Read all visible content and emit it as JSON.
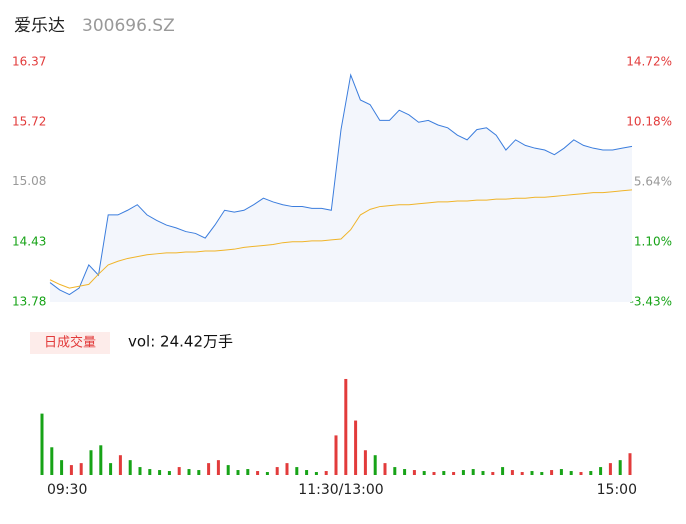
{
  "header": {
    "name": "爱乐达",
    "code": "300696.SZ"
  },
  "chart_data": [
    {
      "type": "line",
      "x": [
        0,
        4,
        8,
        12,
        16,
        20,
        24,
        28,
        32,
        36,
        40,
        44,
        48,
        52,
        56,
        60,
        64,
        68,
        72,
        76,
        80,
        84,
        88,
        92,
        96,
        100,
        104,
        108,
        112,
        116,
        120,
        124,
        128,
        132,
        136,
        140,
        144,
        148,
        152,
        156,
        160,
        164,
        168,
        172,
        176,
        180,
        184,
        188,
        192,
        196,
        200,
        204,
        208,
        212,
        216,
        220,
        224,
        228,
        232,
        236,
        240
      ],
      "xlim": [
        0,
        240
      ],
      "series": [
        {
          "color": "#3b7ddd",
          "fill": "#f3f6fc",
          "values": [
            13.99,
            13.91,
            13.86,
            13.93,
            14.18,
            14.07,
            14.72,
            14.72,
            14.77,
            14.83,
            14.72,
            14.66,
            14.61,
            14.58,
            14.54,
            14.52,
            14.47,
            14.61,
            14.77,
            14.75,
            14.77,
            14.83,
            14.9,
            14.86,
            14.83,
            14.81,
            14.81,
            14.79,
            14.79,
            14.77,
            15.64,
            16.23,
            15.96,
            15.91,
            15.74,
            15.74,
            15.85,
            15.8,
            15.72,
            15.74,
            15.69,
            15.66,
            15.58,
            15.53,
            15.64,
            15.66,
            15.58,
            15.42,
            15.53,
            15.47,
            15.44,
            15.42,
            15.37,
            15.44,
            15.53,
            15.47,
            15.44,
            15.42,
            15.42,
            15.44,
            15.46
          ]
        },
        {
          "color": "#f0b429",
          "values": [
            14.02,
            13.97,
            13.93,
            13.95,
            13.97,
            14.08,
            14.18,
            14.22,
            14.25,
            14.27,
            14.29,
            14.3,
            14.31,
            14.31,
            14.32,
            14.32,
            14.33,
            14.33,
            14.34,
            14.35,
            14.37,
            14.38,
            14.39,
            14.4,
            14.42,
            14.43,
            14.43,
            14.44,
            14.44,
            14.45,
            14.46,
            14.56,
            14.72,
            14.78,
            14.81,
            14.82,
            14.83,
            14.83,
            14.84,
            14.85,
            14.86,
            14.86,
            14.87,
            14.87,
            14.88,
            14.88,
            14.89,
            14.89,
            14.9,
            14.9,
            14.91,
            14.91,
            14.92,
            14.93,
            14.94,
            14.95,
            14.96,
            14.96,
            14.97,
            14.98,
            14.99
          ]
        }
      ],
      "ylim": [
        13.78,
        16.37
      ],
      "yticks": [
        16.37,
        15.72,
        15.08,
        14.43,
        13.78
      ],
      "ytick_colors": [
        "#e23b3b",
        "#e23b3b",
        "#999999",
        "#17a317",
        "#17a317"
      ],
      "y2lim": [
        -3.43,
        14.72
      ],
      "y2ticks": [
        {
          "value": 14.72,
          "label": "14.72%"
        },
        {
          "value": 10.18,
          "label": "10.18%"
        },
        {
          "value": 5.64,
          "label": "5.64%"
        },
        {
          "value": 1.1,
          "label": "1.10%"
        },
        {
          "value": -3.43,
          "label": "-3.43%"
        }
      ]
    },
    {
      "type": "bar",
      "button": "日成交量",
      "label": "vol: 24.42万手",
      "x": [
        0,
        4,
        8,
        12,
        16,
        20,
        24,
        28,
        32,
        36,
        40,
        44,
        48,
        52,
        56,
        60,
        64,
        68,
        72,
        76,
        80,
        84,
        88,
        92,
        96,
        100,
        104,
        108,
        112,
        116,
        120,
        124,
        128,
        132,
        136,
        140,
        144,
        148,
        152,
        156,
        160,
        164,
        168,
        172,
        176,
        180,
        184,
        188,
        192,
        196,
        200,
        204,
        208,
        212,
        216,
        220,
        224,
        228,
        232,
        236,
        240
      ],
      "xlim": [
        0,
        240
      ],
      "xticks": [
        {
          "value": 0,
          "label": "09:30"
        },
        {
          "value": 120,
          "label": "11:30/13:00"
        },
        {
          "value": 240,
          "label": "15:00"
        }
      ],
      "values": [
        62,
        28,
        15,
        10,
        12,
        25,
        30,
        12,
        20,
        15,
        8,
        6,
        5,
        4,
        8,
        6,
        5,
        12,
        15,
        10,
        5,
        6,
        4,
        3,
        8,
        12,
        8,
        5,
        3,
        4,
        40,
        97,
        55,
        25,
        20,
        12,
        8,
        6,
        5,
        4,
        3,
        4,
        3,
        5,
        6,
        4,
        3,
        8,
        5,
        3,
        4,
        3,
        5,
        6,
        4,
        3,
        4,
        8,
        12,
        15,
        22
      ],
      "colors": [
        "#17a317",
        "#17a317",
        "#17a317",
        "#e23b3b",
        "#e23b3b",
        "#17a317",
        "#17a317",
        "#17a317",
        "#e23b3b",
        "#17a317",
        "#17a317",
        "#17a317",
        "#17a317",
        "#17a317",
        "#e23b3b",
        "#17a317",
        "#17a317",
        "#e23b3b",
        "#e23b3b",
        "#17a317",
        "#17a317",
        "#17a317",
        "#e23b3b",
        "#17a317",
        "#e23b3b",
        "#e23b3b",
        "#17a317",
        "#17a317",
        "#17a317",
        "#e23b3b",
        "#e23b3b",
        "#e23b3b",
        "#e23b3b",
        "#e23b3b",
        "#17a317",
        "#e23b3b",
        "#17a317",
        "#17a317",
        "#e23b3b",
        "#17a317",
        "#e23b3b",
        "#17a317",
        "#e23b3b",
        "#17a317",
        "#17a317",
        "#17a317",
        "#e23b3b",
        "#17a317",
        "#e23b3b",
        "#e23b3b",
        "#17a317",
        "#17a317",
        "#e23b3b",
        "#17a317",
        "#17a317",
        "#e23b3b",
        "#17a317",
        "#17a317",
        "#e23b3b",
        "#17a317",
        "#e23b3b"
      ],
      "ylim": [
        0,
        100
      ]
    }
  ]
}
